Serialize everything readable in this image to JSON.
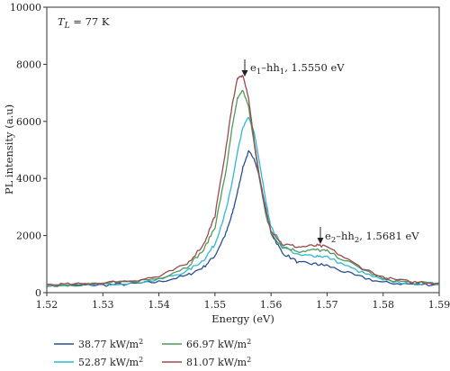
{
  "chart_data": {
    "type": "line",
    "xlabel": "Energy (eV)",
    "ylabel": "PL intensity (a.u)",
    "xlim": [
      1.52,
      1.59
    ],
    "ylim": [
      0,
      10000
    ],
    "xticks": [
      1.52,
      1.53,
      1.54,
      1.55,
      1.56,
      1.57,
      1.58,
      1.59
    ],
    "yticks": [
      0,
      2000,
      4000,
      6000,
      8000,
      10000
    ],
    "grid": false,
    "legend_position": "bottom",
    "annotations": {
      "temperature": {
        "symbol": "T",
        "subscript": "L",
        "value": " = 77 K"
      },
      "peak1": {
        "label_main": "e",
        "sub1": "1",
        "mid": "–hh",
        "sub2": "1",
        "tail": ", 1.5550 eV",
        "x": 1.555,
        "y": 7650
      },
      "peak2": {
        "label_main": "e",
        "sub1": "2",
        "mid": "–hh",
        "sub2": "2",
        "tail": ", 1.5681 eV",
        "x": 1.5681,
        "y": 1650
      }
    },
    "series": [
      {
        "name": "38.77 kW/m",
        "unit_sup": "2",
        "color": "#2a4f8f",
        "x": [
          1.52,
          1.525,
          1.53,
          1.535,
          1.54,
          1.545,
          1.548,
          1.55,
          1.552,
          1.553,
          1.554,
          1.555,
          1.556,
          1.557,
          1.558,
          1.559,
          1.56,
          1.562,
          1.565,
          1.568,
          1.57,
          1.575,
          1.58,
          1.585,
          1.59
        ],
        "y": [
          250,
          250,
          270,
          300,
          380,
          600,
          900,
          1300,
          2100,
          2700,
          3500,
          4400,
          4950,
          4700,
          4000,
          3000,
          2100,
          1400,
          1050,
          1000,
          950,
          600,
          350,
          300,
          280
        ]
      },
      {
        "name": "52.87 kW/m",
        "unit_sup": "2",
        "color": "#33b5d6",
        "x": [
          1.52,
          1.525,
          1.53,
          1.535,
          1.54,
          1.545,
          1.548,
          1.55,
          1.552,
          1.553,
          1.554,
          1.555,
          1.556,
          1.557,
          1.558,
          1.559,
          1.56,
          1.562,
          1.565,
          1.568,
          1.57,
          1.575,
          1.58,
          1.585,
          1.59
        ],
        "y": [
          260,
          270,
          300,
          350,
          450,
          750,
          1150,
          1700,
          2900,
          3800,
          4900,
          5800,
          6150,
          5600,
          4500,
          3300,
          2300,
          1650,
          1300,
          1300,
          1250,
          800,
          420,
          330,
          300
        ]
      },
      {
        "name": "66.97 kW/m",
        "unit_sup": "2",
        "color": "#4d9a5a",
        "x": [
          1.52,
          1.525,
          1.53,
          1.535,
          1.54,
          1.545,
          1.548,
          1.55,
          1.552,
          1.553,
          1.554,
          1.555,
          1.556,
          1.557,
          1.558,
          1.559,
          1.56,
          1.562,
          1.565,
          1.568,
          1.57,
          1.575,
          1.58,
          1.585,
          1.59
        ],
        "y": [
          270,
          280,
          320,
          380,
          500,
          900,
          1500,
          2300,
          4300,
          5700,
          6800,
          7100,
          6500,
          5200,
          3900,
          2800,
          2100,
          1600,
          1450,
          1500,
          1450,
          950,
          480,
          350,
          320
        ]
      },
      {
        "name": "81.07 kW/m",
        "unit_sup": "2",
        "color": "#9a4a50",
        "x": [
          1.52,
          1.525,
          1.53,
          1.535,
          1.54,
          1.545,
          1.548,
          1.55,
          1.552,
          1.553,
          1.554,
          1.555,
          1.556,
          1.557,
          1.558,
          1.559,
          1.56,
          1.562,
          1.565,
          1.568,
          1.57,
          1.575,
          1.58,
          1.585,
          1.59
        ],
        "y": [
          280,
          290,
          340,
          420,
          560,
          1000,
          1700,
          2700,
          5100,
          6500,
          7500,
          7600,
          6800,
          5300,
          4000,
          2900,
          2200,
          1700,
          1600,
          1650,
          1600,
          1000,
          520,
          370,
          340
        ]
      }
    ]
  }
}
